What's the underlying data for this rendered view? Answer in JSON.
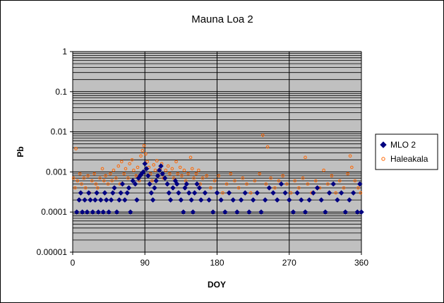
{
  "chart_data": {
    "type": "scatter",
    "title": "Mauna Loa 2",
    "xlabel": "DOY",
    "ylabel": "Pb",
    "xlim": [
      0,
      360
    ],
    "ylim": [
      1e-05,
      1
    ],
    "y_scale": "log",
    "x_ticks": [
      "0",
      "90",
      "180",
      "270",
      "360"
    ],
    "y_ticks": [
      "0.00001",
      "0.0001",
      "0.001",
      "0.01",
      "0.1",
      "1"
    ],
    "grid": true,
    "legend_position": "right",
    "series": [
      {
        "name": "MLO 2",
        "color": "#000080",
        "marker": "diamond-filled",
        "points": [
          [
            5,
            0.0001
          ],
          [
            8,
            0.0002
          ],
          [
            10,
            0.0003
          ],
          [
            12,
            0.0001
          ],
          [
            15,
            0.0002
          ],
          [
            18,
            0.0001
          ],
          [
            20,
            0.0003
          ],
          [
            22,
            0.0002
          ],
          [
            25,
            0.0001
          ],
          [
            28,
            0.0002
          ],
          [
            30,
            0.0003
          ],
          [
            32,
            0.0001
          ],
          [
            35,
            0.0002
          ],
          [
            38,
            0.0001
          ],
          [
            40,
            0.0003
          ],
          [
            42,
            0.0002
          ],
          [
            45,
            0.0001
          ],
          [
            48,
            0.0002
          ],
          [
            50,
            0.0003
          ],
          [
            52,
            0.0004
          ],
          [
            55,
            0.0001
          ],
          [
            58,
            0.0002
          ],
          [
            60,
            0.0003
          ],
          [
            62,
            0.0005
          ],
          [
            65,
            0.0002
          ],
          [
            68,
            0.0003
          ],
          [
            70,
            0.0004
          ],
          [
            72,
            0.0001
          ],
          [
            75,
            0.0006
          ],
          [
            78,
            0.0005
          ],
          [
            80,
            0.0002
          ],
          [
            82,
            0.0007
          ],
          [
            84,
            0.0008
          ],
          [
            86,
            0.0009
          ],
          [
            88,
            0.001
          ],
          [
            90,
            0.0016
          ],
          [
            92,
            0.0012
          ],
          [
            94,
            0.0008
          ],
          [
            96,
            0.0005
          ],
          [
            98,
            0.0003
          ],
          [
            100,
            0.0002
          ],
          [
            102,
            0.0004
          ],
          [
            104,
            0.0006
          ],
          [
            106,
            0.0008
          ],
          [
            108,
            0.0011
          ],
          [
            110,
            0.0014
          ],
          [
            112,
            0.0009
          ],
          [
            115,
            0.0007
          ],
          [
            118,
            0.0005
          ],
          [
            120,
            0.0003
          ],
          [
            122,
            0.0002
          ],
          [
            125,
            0.0004
          ],
          [
            128,
            0.0006
          ],
          [
            130,
            0.0005
          ],
          [
            132,
            0.0003
          ],
          [
            135,
            0.0002
          ],
          [
            138,
            0.0001
          ],
          [
            140,
            0.0004
          ],
          [
            142,
            0.0005
          ],
          [
            145,
            0.0003
          ],
          [
            148,
            0.0002
          ],
          [
            150,
            0.0001
          ],
          [
            152,
            0.0003
          ],
          [
            155,
            0.0005
          ],
          [
            158,
            0.0004
          ],
          [
            160,
            0.0002
          ],
          [
            165,
            0.0003
          ],
          [
            170,
            0.0002
          ],
          [
            175,
            0.0001
          ],
          [
            180,
            0.0003
          ],
          [
            185,
            0.0002
          ],
          [
            190,
            0.0001
          ],
          [
            195,
            0.0003
          ],
          [
            200,
            0.0002
          ],
          [
            205,
            0.0001
          ],
          [
            210,
            0.0002
          ],
          [
            215,
            0.0003
          ],
          [
            220,
            0.0001
          ],
          [
            225,
            0.0002
          ],
          [
            230,
            0.0003
          ],
          [
            235,
            0.0001
          ],
          [
            240,
            0.0002
          ],
          [
            245,
            0.0004
          ],
          [
            250,
            0.0003
          ],
          [
            255,
            0.0002
          ],
          [
            260,
            0.0005
          ],
          [
            265,
            0.0003
          ],
          [
            270,
            0.0002
          ],
          [
            275,
            0.0001
          ],
          [
            280,
            0.0003
          ],
          [
            285,
            0.0002
          ],
          [
            290,
            0.0001
          ],
          [
            295,
            0.0002
          ],
          [
            300,
            0.0003
          ],
          [
            305,
            0.0004
          ],
          [
            310,
            0.0002
          ],
          [
            315,
            0.0001
          ],
          [
            320,
            0.0003
          ],
          [
            325,
            0.0005
          ],
          [
            330,
            0.0002
          ],
          [
            335,
            0.0003
          ],
          [
            340,
            0.0001
          ],
          [
            345,
            0.0002
          ],
          [
            350,
            0.0003
          ],
          [
            355,
            0.0001
          ],
          [
            358,
            0.0005
          ],
          [
            360,
            0.0001
          ]
        ]
      },
      {
        "name": "Haleakala",
        "color": "#ff6600",
        "marker": "circle-open",
        "points": [
          [
            1,
            0.0007
          ],
          [
            3,
            0.0004
          ],
          [
            4,
            0.0038
          ],
          [
            6,
            0.0006
          ],
          [
            9,
            0.0009
          ],
          [
            11,
            0.0005
          ],
          [
            14,
            0.0007
          ],
          [
            16,
            0.0004
          ],
          [
            19,
            0.0008
          ],
          [
            21,
            0.0003
          ],
          [
            24,
            0.0006
          ],
          [
            27,
            0.0009
          ],
          [
            29,
            0.0005
          ],
          [
            31,
            0.0004
          ],
          [
            34,
            0.0007
          ],
          [
            37,
            0.0012
          ],
          [
            39,
            0.0006
          ],
          [
            41,
            0.0008
          ],
          [
            44,
            0.0005
          ],
          [
            47,
            0.0009
          ],
          [
            49,
            0.0006
          ],
          [
            51,
            0.0011
          ],
          [
            54,
            0.0007
          ],
          [
            57,
            0.0014
          ],
          [
            59,
            0.0005
          ],
          [
            61,
            0.0018
          ],
          [
            64,
            0.0009
          ],
          [
            66,
            0.0012
          ],
          [
            69,
            0.0007
          ],
          [
            71,
            0.0016
          ],
          [
            74,
            0.002
          ],
          [
            76,
            0.0011
          ],
          [
            79,
            0.0008
          ],
          [
            81,
            0.0013
          ],
          [
            83,
            0.0006
          ],
          [
            85,
            0.0025
          ],
          [
            87,
            0.0034
          ],
          [
            89,
            0.0045
          ],
          [
            91,
            0.0028
          ],
          [
            93,
            0.0018
          ],
          [
            95,
            0.0013
          ],
          [
            97,
            0.0009
          ],
          [
            99,
            0.0006
          ],
          [
            101,
            0.0015
          ],
          [
            103,
            0.0011
          ],
          [
            105,
            0.0019
          ],
          [
            107,
            0.0008
          ],
          [
            109,
            0.0012
          ],
          [
            111,
            0.0016
          ],
          [
            113,
            0.0007
          ],
          [
            116,
            0.0011
          ],
          [
            119,
            0.0014
          ],
          [
            121,
            0.0009
          ],
          [
            124,
            0.0012
          ],
          [
            126,
            0.0007
          ],
          [
            129,
            0.0018
          ],
          [
            131,
            0.0009
          ],
          [
            134,
            0.0013
          ],
          [
            136,
            0.0008
          ],
          [
            139,
            0.0011
          ],
          [
            141,
            0.0006
          ],
          [
            144,
            0.0009
          ],
          [
            147,
            0.0023
          ],
          [
            149,
            0.0012
          ],
          [
            151,
            0.0007
          ],
          [
            154,
            0.0009
          ],
          [
            157,
            0.0011
          ],
          [
            159,
            0.0005
          ],
          [
            162,
            0.0007
          ],
          [
            167,
            0.0008
          ],
          [
            172,
            0.0004
          ],
          [
            177,
            0.0006
          ],
          [
            182,
            0.0008
          ],
          [
            187,
            0.0003
          ],
          [
            192,
            0.0005
          ],
          [
            197,
            0.0009
          ],
          [
            202,
            0.0006
          ],
          [
            207,
            0.0004
          ],
          [
            212,
            0.0007
          ],
          [
            217,
            0.0005
          ],
          [
            222,
            0.0003
          ],
          [
            227,
            0.0006
          ],
          [
            233,
            0.0009
          ],
          [
            237,
            0.0082
          ],
          [
            241,
            0.0005
          ],
          [
            243,
            0.0042
          ],
          [
            247,
            0.0007
          ],
          [
            252,
            0.0004
          ],
          [
            257,
            0.0006
          ],
          [
            262,
            0.0008
          ],
          [
            267,
            0.0005
          ],
          [
            272,
            0.0003
          ],
          [
            277,
            0.0006
          ],
          [
            282,
            0.0004
          ],
          [
            287,
            0.0007
          ],
          [
            290,
            0.0023
          ],
          [
            293,
            0.0005
          ],
          [
            298,
            0.0003
          ],
          [
            303,
            0.0006
          ],
          [
            308,
            0.0004
          ],
          [
            313,
            0.0011
          ],
          [
            318,
            0.0005
          ],
          [
            323,
            0.0008
          ],
          [
            328,
            0.0003
          ],
          [
            333,
            0.0006
          ],
          [
            338,
            0.0004
          ],
          [
            343,
            0.0009
          ],
          [
            346,
            0.0025
          ],
          [
            348,
            0.0013
          ],
          [
            352,
            0.0006
          ],
          [
            356,
            0.0004
          ],
          [
            359,
            0.0003
          ]
        ]
      }
    ]
  }
}
